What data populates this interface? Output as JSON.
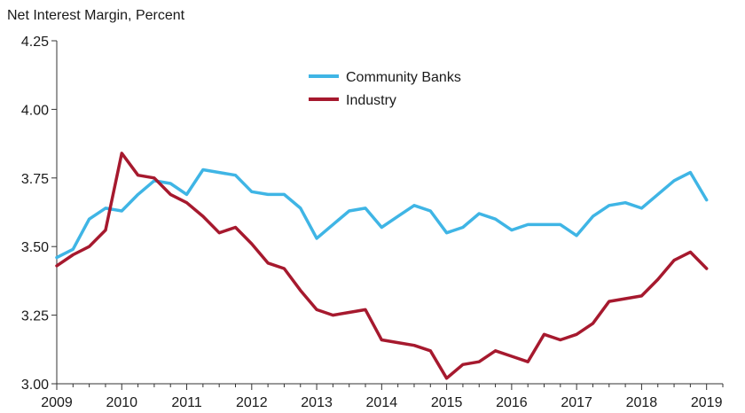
{
  "chart_data": {
    "type": "line",
    "ylabel": "Net Interest Margin, Percent",
    "xlabel": "",
    "ylim": [
      3.0,
      4.25
    ],
    "yticks": [
      "3.00",
      "3.25",
      "3.50",
      "3.75",
      "4.00",
      "4.25"
    ],
    "xticks": [
      "2009",
      "2010",
      "2011",
      "2012",
      "2013",
      "2014",
      "2015",
      "2016",
      "2017",
      "2018",
      "2019"
    ],
    "xlim": [
      2009.0,
      2019.25
    ],
    "grid": false,
    "legend_position": "top-center",
    "series": [
      {
        "name": "Community Banks",
        "color": "#3fb5e5",
        "x": [
          2009.0,
          2009.25,
          2009.5,
          2009.75,
          2010.0,
          2010.25,
          2010.5,
          2010.75,
          2011.0,
          2011.25,
          2011.5,
          2011.75,
          2012.0,
          2012.25,
          2012.5,
          2012.75,
          2013.0,
          2013.25,
          2013.5,
          2013.75,
          2014.0,
          2014.25,
          2014.5,
          2014.75,
          2015.0,
          2015.25,
          2015.5,
          2015.75,
          2016.0,
          2016.25,
          2016.5,
          2016.75,
          2017.0,
          2017.25,
          2017.5,
          2017.75,
          2018.0,
          2018.25,
          2018.5,
          2018.75,
          2019.0
        ],
        "values": [
          3.46,
          3.49,
          3.6,
          3.64,
          3.63,
          3.69,
          3.74,
          3.73,
          3.69,
          3.78,
          3.77,
          3.76,
          3.7,
          3.69,
          3.69,
          3.64,
          3.53,
          3.58,
          3.63,
          3.64,
          3.57,
          3.61,
          3.65,
          3.63,
          3.55,
          3.57,
          3.62,
          3.6,
          3.56,
          3.58,
          3.58,
          3.58,
          3.54,
          3.61,
          3.65,
          3.66,
          3.64,
          3.69,
          3.74,
          3.77,
          3.67
        ]
      },
      {
        "name": "Industry",
        "color": "#a6192e",
        "x": [
          2009.0,
          2009.25,
          2009.5,
          2009.75,
          2010.0,
          2010.25,
          2010.5,
          2010.75,
          2011.0,
          2011.25,
          2011.5,
          2011.75,
          2012.0,
          2012.25,
          2012.5,
          2012.75,
          2013.0,
          2013.25,
          2013.5,
          2013.75,
          2014.0,
          2014.25,
          2014.5,
          2014.75,
          2015.0,
          2015.25,
          2015.5,
          2015.75,
          2016.0,
          2016.25,
          2016.5,
          2016.75,
          2017.0,
          2017.25,
          2017.5,
          2017.75,
          2018.0,
          2018.25,
          2018.5,
          2018.75,
          2019.0
        ],
        "values": [
          3.43,
          3.47,
          3.5,
          3.56,
          3.84,
          3.76,
          3.75,
          3.69,
          3.66,
          3.61,
          3.55,
          3.57,
          3.51,
          3.44,
          3.42,
          3.34,
          3.27,
          3.25,
          3.26,
          3.27,
          3.16,
          3.15,
          3.14,
          3.12,
          3.02,
          3.07,
          3.08,
          3.12,
          3.1,
          3.08,
          3.18,
          3.16,
          3.18,
          3.22,
          3.3,
          3.31,
          3.32,
          3.38,
          3.45,
          3.48,
          3.42
        ]
      }
    ]
  }
}
